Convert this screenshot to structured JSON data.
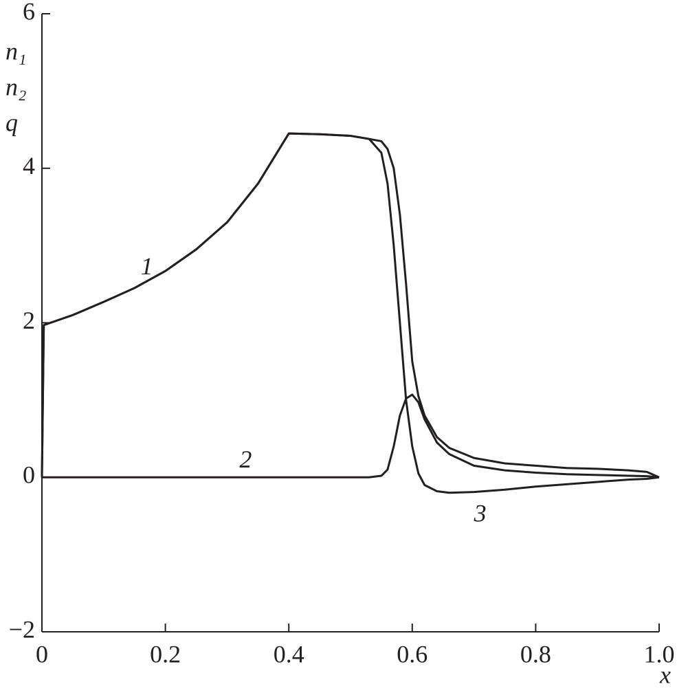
{
  "chart_data": {
    "type": "line",
    "ylabel": [
      "n₁",
      "n₂",
      "q"
    ],
    "xlabel": "x",
    "x": [
      0,
      0.003,
      0.05,
      0.1,
      0.15,
      0.2,
      0.25,
      0.3,
      0.35,
      0.4,
      0.45,
      0.5,
      0.53,
      0.55,
      0.56,
      0.57,
      0.58,
      0.59,
      0.6,
      0.61,
      0.62,
      0.64,
      0.66,
      0.7,
      0.75,
      0.8,
      0.85,
      0.9,
      0.95,
      0.98,
      1
    ],
    "series": [
      {
        "name": "1",
        "color": "#231f20",
        "values": [
          0,
          1.97,
          2.1,
          2.27,
          2.45,
          2.67,
          2.95,
          3.3,
          3.8,
          4.45,
          4.44,
          4.42,
          4.38,
          4.35,
          4.25,
          4.0,
          3.4,
          2.5,
          1.5,
          1.05,
          0.8,
          0.52,
          0.38,
          0.25,
          0.18,
          0.15,
          0.12,
          0.11,
          0.09,
          0.07,
          0
        ]
      },
      {
        "name": "2",
        "color": "#231f20",
        "values": [
          0,
          0,
          0,
          0,
          0,
          0,
          0,
          0,
          0,
          0,
          0,
          0,
          0,
          0.02,
          0.1,
          0.4,
          0.8,
          1.02,
          1.07,
          0.97,
          0.75,
          0.45,
          0.3,
          0.15,
          0.09,
          0.06,
          0.04,
          0.03,
          0.02,
          0.015,
          0
        ]
      },
      {
        "name": "3",
        "color": "#231f20",
        "values": [
          0,
          1.97,
          2.1,
          2.27,
          2.45,
          2.67,
          2.95,
          3.3,
          3.8,
          4.45,
          4.44,
          4.42,
          4.38,
          4.2,
          3.8,
          3.0,
          2.0,
          1.0,
          0.4,
          0.05,
          -0.1,
          -0.18,
          -0.2,
          -0.19,
          -0.16,
          -0.12,
          -0.09,
          -0.06,
          -0.03,
          -0.02,
          0
        ]
      }
    ],
    "xlim": [
      0,
      1
    ],
    "xticks": [
      0,
      0.2,
      0.4,
      0.6,
      0.8,
      {
        "value": 1,
        "label": "1.0"
      }
    ],
    "ylim": [
      -2,
      6
    ],
    "yticks": [
      {
        "value": -2,
        "label": "−2"
      },
      0,
      2,
      4,
      6
    ],
    "grid": false
  }
}
